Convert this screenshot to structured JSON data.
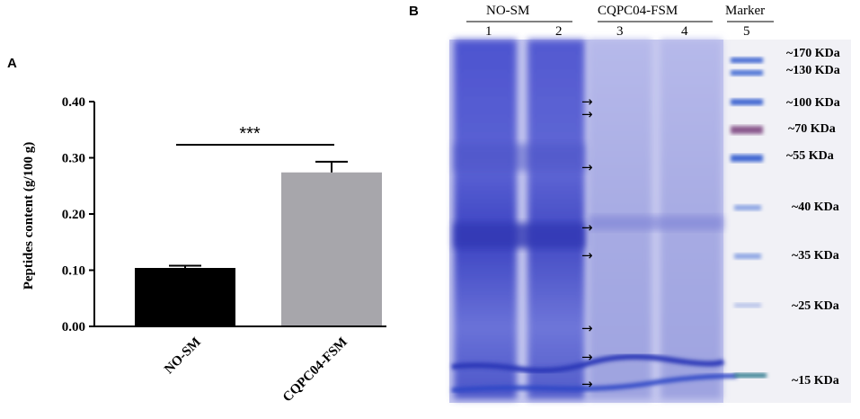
{
  "panel_a": {
    "letter": "A",
    "chart_data": {
      "type": "bar",
      "categories": [
        "NO-SM",
        "CQPC04-FSM"
      ],
      "values": [
        0.104,
        0.274
      ],
      "errors": [
        0.004,
        0.019
      ],
      "colors": [
        "#000000",
        "#a7a6ab"
      ],
      "ylabel": "Peptides content (g/100 g)",
      "ylim": [
        0,
        0.4
      ],
      "yticks": [
        "0.00",
        "0.10",
        "0.20",
        "0.30",
        "0.40"
      ],
      "significance": "***"
    }
  },
  "panel_b": {
    "letter": "B",
    "groups": [
      {
        "label": "NO-SM"
      },
      {
        "label": "CQPC04-FSM"
      },
      {
        "label": "Marker"
      }
    ],
    "lanes": [
      "1",
      "2",
      "3",
      "4",
      "5"
    ],
    "markers": [
      "~170 KDa",
      "~130 KDa",
      "~100 KDa",
      "~70 KDa",
      "~55 KDa",
      "~40 KDa",
      "~35 KDa",
      "~25 KDa",
      "~15 KDa"
    ],
    "arrow_glyph": "→"
  }
}
